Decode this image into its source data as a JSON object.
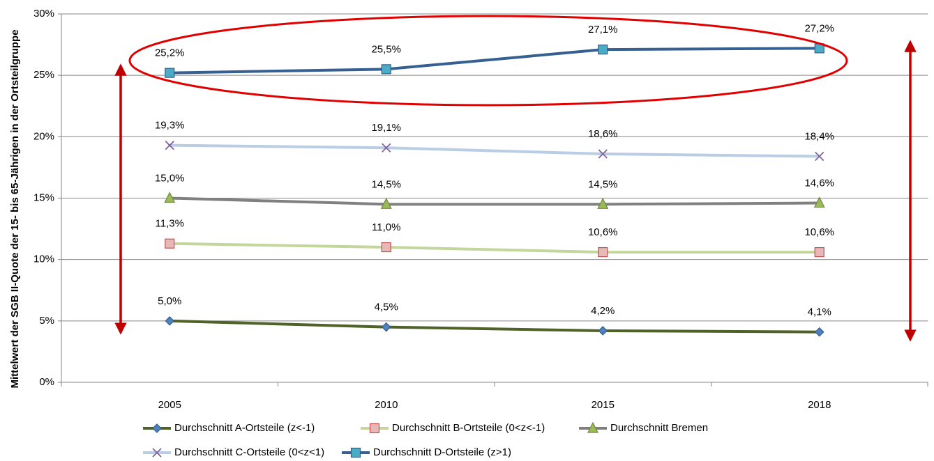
{
  "chart_data": {
    "type": "line",
    "y_label": "Mittelwert der SGB II-Quote der 15- bis 65-Jährigen in der Ortsteilgruppe",
    "categories": [
      "2005",
      "2010",
      "2015",
      "2018"
    ],
    "ylim": [
      0,
      30
    ],
    "yticks": [
      {
        "value": 0,
        "label": "0%"
      },
      {
        "value": 5,
        "label": "5%"
      },
      {
        "value": 10,
        "label": "10%"
      },
      {
        "value": 15,
        "label": "15%"
      },
      {
        "value": 20,
        "label": "20%"
      },
      {
        "value": 25,
        "label": "25%"
      },
      {
        "value": 30,
        "label": "30%"
      }
    ],
    "grid": true,
    "legend": "bottom",
    "series": [
      {
        "name": "Durchschnitt A-Ortsteile (z<-1)",
        "color": "#4f6228",
        "marker": "diamond",
        "marker_color": "#4f81bd",
        "values": [
          5.0,
          4.5,
          4.2,
          4.1
        ],
        "value_labels": [
          "5,0%",
          "4,5%",
          "4,2%",
          "4,1%"
        ]
      },
      {
        "name": "Durchschnitt B-Ortsteile (0<z<-1)",
        "color": "#c3d69b",
        "marker": "square",
        "marker_color": "#e6b9b8",
        "values": [
          11.3,
          11.0,
          10.6,
          10.6
        ],
        "value_labels": [
          "11,3%",
          "11,0%",
          "10,6%",
          "10,6%"
        ]
      },
      {
        "name": "Durchschnitt Bremen",
        "color": "#808080",
        "marker": "triangle",
        "marker_color": "#9bbb59",
        "values": [
          15.0,
          14.5,
          14.5,
          14.6
        ],
        "value_labels": [
          "15,0%",
          "14,5%",
          "14,5%",
          "14,6%"
        ]
      },
      {
        "name": "Durchschnitt C-Ortsteile (0<z<1)",
        "color": "#b9cde5",
        "marker": "x",
        "marker_color": "#8064a2",
        "values": [
          19.3,
          19.1,
          18.6,
          18.4
        ],
        "value_labels": [
          "19,3%",
          "19,1%",
          "18,6%",
          "18,4%"
        ]
      },
      {
        "name": "Durchschnitt D-Ortsteile (z>1)",
        "color": "#376092",
        "marker": "square",
        "marker_color": "#4bacc6",
        "values": [
          25.2,
          25.5,
          27.1,
          27.2
        ],
        "value_labels": [
          "25,2%",
          "25,5%",
          "27,1%",
          "27,2%"
        ]
      }
    ]
  }
}
